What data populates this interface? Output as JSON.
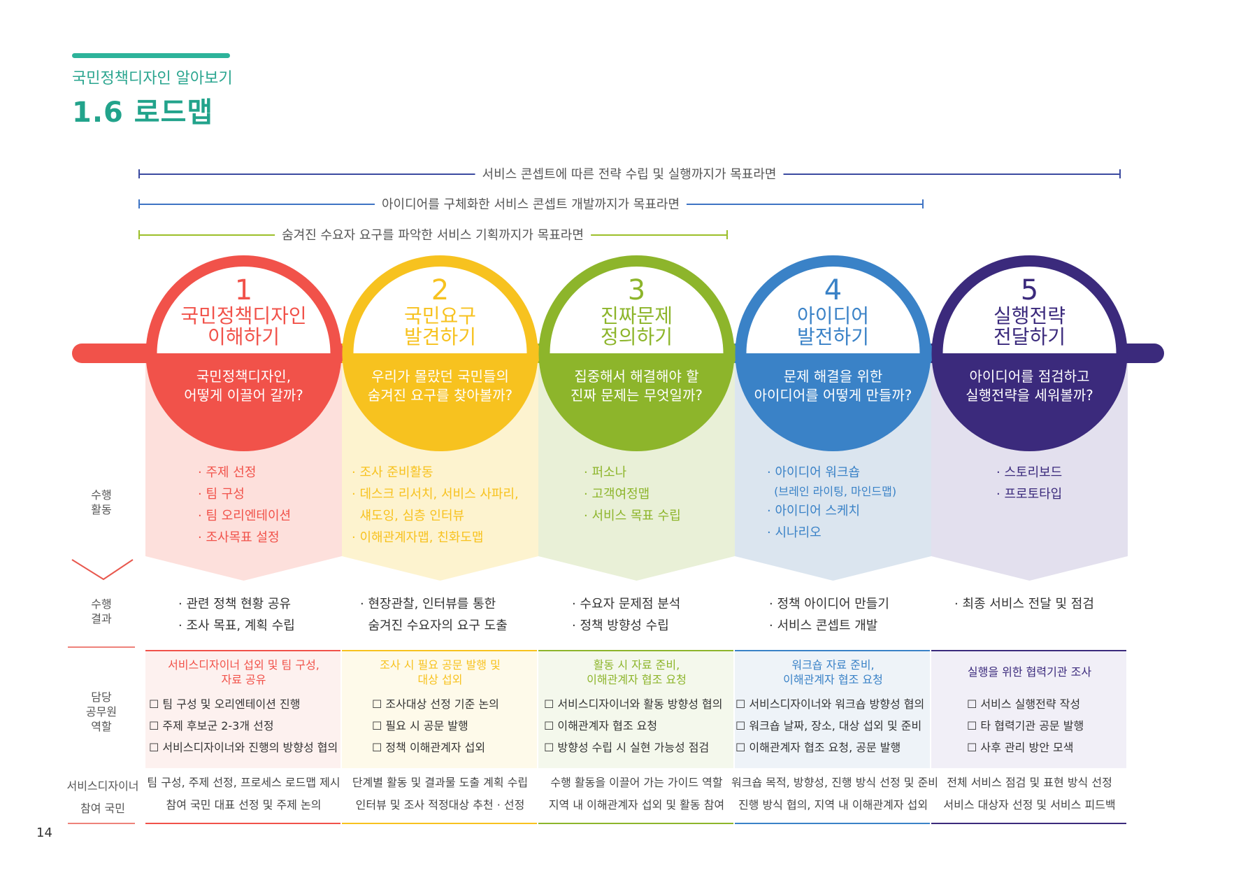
{
  "header": {
    "subtitle": "국민정책디자인 알아보기",
    "title": "1.6 로드맵"
  },
  "ranges": [
    {
      "label": "서비스 콘셉트에 따른 전략 수립 및 실행까지가 목표라면",
      "color": "#3b4aa0"
    },
    {
      "label": "아이디어를 구체화한 서비스 콘셉트 개발까지가 목표라면",
      "color": "#3f74c4"
    },
    {
      "label": "숨겨진 수요자 요구를 파악한 서비스 기획까지가 목표라면",
      "color": "#9cbf2a"
    }
  ],
  "row_labels": {
    "activity": "수행\n활동",
    "result": "수행\n결과",
    "role": "담당\n공무원\n역할",
    "designer": "서비스디자이너",
    "citizen": "참여 국민"
  },
  "page_number": "14",
  "stages": [
    {
      "num": "1",
      "title1": "국민정책디자인",
      "title2": "이해하기",
      "q1": "국민정책디자인,",
      "q2": "어떻게 이끌어 갈까?",
      "color": "#f1524a",
      "tint": "#fde0dc",
      "tint2": "#fdf1ef",
      "activities": [
        "· 주제 선정",
        "· 팀 구성",
        "· 팀 오리엔테이션",
        "· 조사목표 설정"
      ],
      "results": [
        "· 관련 정책 현황 공유",
        "· 조사 목표, 계획 수립"
      ],
      "role_head": [
        "서비스디자이너 섭외 및 팀 구성,",
        "자료 공유"
      ],
      "role_items": [
        "☐ 팀 구성 및 오리엔테이션 진행",
        "☐ 주제 후보군 2-3개 선정",
        "☐ 서비스디자이너와 진행의 방향성 협의"
      ],
      "designer": "팀 구성, 주제 선정, 프로세스 로드맵 제시",
      "citizen": "참여 국민 대표 선정 및 주제 논의"
    },
    {
      "num": "2",
      "title1": "국민요구",
      "title2": "발견하기",
      "q1": "우리가 몰랐던 국민들의",
      "q2": "숨겨진 요구를 찾아볼까?",
      "color": "#f7c21f",
      "tint": "#fdf3cf",
      "tint2": "#fefaea",
      "activities": [
        "· 조사 준비활동",
        "· 데스크 리서치, 서비스 사파리,",
        "  섀도잉, 심층 인터뷰",
        "· 이해관계자맵, 친화도맵"
      ],
      "results": [
        "· 현장관찰, 인터뷰를 통한",
        "  숨겨진 수요자의 요구 도출"
      ],
      "role_head": [
        "조사 시 필요 공문 발행 및",
        "대상 섭외"
      ],
      "role_items": [
        "☐ 조사대상 선정 기준 논의",
        "☐ 필요 시 공문 발행",
        "☐ 정책 이해관계자 섭외"
      ],
      "designer": "단계별 활동 및 결과물 도출 계획 수립",
      "citizen": "인터뷰 및 조사 적정대상 추천 · 선정"
    },
    {
      "num": "3",
      "title1": "진짜문제",
      "title2": "정의하기",
      "q1": "집중해서 해결해야 할",
      "q2": "진짜 문제는 무엇일까?",
      "color": "#8db52b",
      "tint": "#e9f0d7",
      "tint2": "#f4f8ec",
      "activities": [
        "· 퍼소나",
        "· 고객여정맵",
        "· 서비스 목표 수립"
      ],
      "results": [
        "· 수요자 문제점 분석",
        "· 정책 방향성 수립"
      ],
      "role_head": [
        "활동 시 자료 준비,",
        "이해관계자 협조 요청"
      ],
      "role_items": [
        "☐ 서비스디자이너와 활동 방향성 협의",
        "☐ 이해관계자 협조 요청",
        "☐ 방향성 수립 시 실현 가능성 점검"
      ],
      "designer": "수행 활동을 이끌어 가는 가이드 역할",
      "citizen": "지역 내 이해관계자 섭외 및 활동 참여"
    },
    {
      "num": "4",
      "title1": "아이디어",
      "title2": "발전하기",
      "q1": "문제 해결을 위한",
      "q2": "아이디어를 어떻게 만들까?",
      "color": "#3a82c7",
      "tint": "#dbe5ef",
      "tint2": "#eef3f8",
      "activities": [
        "· 아이디어 워크숍",
        "  (브레인 라이팅, 마인드맵)",
        "· 아이디어 스케치",
        "· 시나리오"
      ],
      "results": [
        "· 정책 아이디어 만들기",
        "· 서비스 콘셉트 개발"
      ],
      "role_head": [
        "워크숍 자료 준비,",
        "이해관계자 협조 요청"
      ],
      "role_items": [
        "☐ 서비스디자이너와 워크숍 방향성 협의",
        "☐ 워크숍 날짜, 장소, 대상 섭외 및 준비",
        "☐ 이해관계자 협조 요청, 공문 발행"
      ],
      "designer": "워크숍 목적, 방향성, 진행 방식 선정 및 준비",
      "citizen": "진행 방식 협의, 지역 내 이해관계자 섭외"
    },
    {
      "num": "5",
      "title1": "실행전략",
      "title2": "전달하기",
      "q1": "아이디어를 점검하고",
      "q2": "실행전략을 세워볼까?",
      "color": "#3b2a7c",
      "tint": "#e3e0ee",
      "tint2": "#f1eff7",
      "activities": [
        "· 스토리보드",
        "· 프로토타입"
      ],
      "results": [
        "· 최종 서비스 전달 및 점검"
      ],
      "role_head": [
        "실행을 위한 협력기관 조사"
      ],
      "role_items": [
        "☐ 서비스 실행전략 작성",
        "☐ 타 협력기관 공문 발행",
        "☐ 사후 관리 방안 모색"
      ],
      "designer": "전체 서비스 점검 및 표현 방식 선정",
      "citizen": "서비스 대상자 선정 및 서비스 피드백"
    }
  ]
}
